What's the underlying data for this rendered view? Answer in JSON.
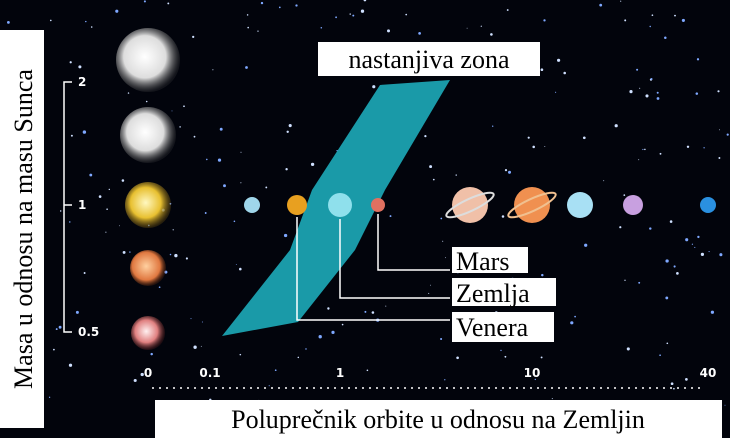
{
  "title": "nastanjiva zona",
  "y_axis": {
    "label": "Masa u odnosu na masu Sunca",
    "ticks": [
      "2",
      "1",
      "0.5"
    ]
  },
  "x_axis": {
    "label": "Poluprečnik orbite u odnosu na Zemljin",
    "ticks": [
      "0",
      "0.1",
      "1",
      "10",
      "40"
    ]
  },
  "planet_labels": [
    "Mars",
    "Zemlja",
    "Venera"
  ]
}
